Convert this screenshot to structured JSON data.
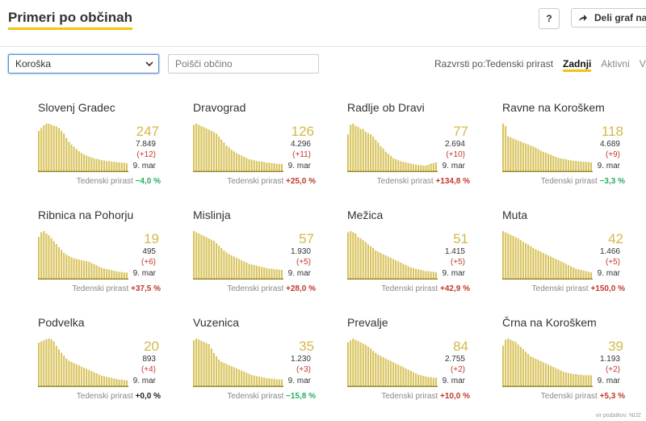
{
  "header": {
    "title": "Primeri po občinah",
    "help": "?",
    "share": "Deli graf na"
  },
  "filters": {
    "region": "Koroška",
    "search_placeholder": "Poišči občino",
    "sort_label": "Razvrsti po:",
    "sort_options": [
      "Tedenski prirast",
      "Zadnji",
      "Aktivni",
      "Vsi"
    ],
    "sort_active": 1
  },
  "cards": [
    {
      "name": "Slovenj Gradec",
      "value": "247",
      "total": "7.849",
      "delta": "(+12)",
      "date": "9. mar",
      "growth_label": "Tedenski prirast",
      "growth": "−4,0 %",
      "trend": "down",
      "bars": [
        75,
        80,
        85,
        88,
        88,
        86,
        84,
        83,
        80,
        75,
        70,
        62,
        55,
        50,
        46,
        42,
        38,
        35,
        32,
        30,
        28,
        27,
        25,
        24,
        23,
        22,
        21,
        20,
        20,
        19,
        19,
        18,
        18,
        17,
        17,
        16
      ]
    },
    {
      "name": "Dravograd",
      "value": "126",
      "total": "4.296",
      "delta": "(+11)",
      "date": "9. mar",
      "growth_label": "Tedenski prirast",
      "growth": "+25,0 %",
      "trend": "up",
      "bars": [
        80,
        82,
        80,
        78,
        76,
        74,
        72,
        70,
        68,
        65,
        60,
        55,
        50,
        45,
        42,
        38,
        35,
        32,
        30,
        28,
        26,
        24,
        22,
        21,
        20,
        19,
        18,
        18,
        17,
        16,
        16,
        15,
        15,
        14,
        14,
        14
      ]
    },
    {
      "name": "Radlje ob Dravi",
      "value": "77",
      "total": "2.694",
      "delta": "(+10)",
      "date": "9. mar",
      "growth_label": "Tedenski prirast",
      "growth": "+134,8 %",
      "trend": "up",
      "bars": [
        70,
        88,
        90,
        86,
        84,
        80,
        80,
        75,
        72,
        70,
        66,
        60,
        55,
        48,
        44,
        38,
        34,
        30,
        26,
        24,
        22,
        20,
        19,
        18,
        17,
        16,
        15,
        14,
        13,
        13,
        12,
        12,
        14,
        16,
        17,
        18
      ]
    },
    {
      "name": "Ravne na Koroškem",
      "value": "118",
      "total": "4.689",
      "delta": "(+9)",
      "date": "9. mar",
      "growth_label": "Tedenski prirast",
      "growth": "−3,3 %",
      "trend": "down",
      "bars": [
        95,
        90,
        70,
        68,
        66,
        64,
        62,
        60,
        58,
        56,
        54,
        52,
        50,
        48,
        45,
        42,
        40,
        38,
        36,
        34,
        32,
        30,
        28,
        27,
        26,
        25,
        24,
        23,
        22,
        22,
        21,
        21,
        20,
        20,
        20,
        19
      ]
    },
    {
      "name": "Ribnica na Pohorju",
      "value": "19",
      "total": "495",
      "delta": "(+6)",
      "date": "9. mar",
      "growth_label": "Tedenski prirast",
      "growth": "+37,5 %",
      "trend": "up",
      "bars": [
        72,
        80,
        82,
        78,
        75,
        70,
        65,
        60,
        55,
        50,
        45,
        42,
        40,
        38,
        36,
        35,
        34,
        33,
        32,
        31,
        30,
        28,
        26,
        24,
        22,
        20,
        19,
        18,
        17,
        16,
        15,
        14,
        13,
        13,
        12,
        12
      ]
    },
    {
      "name": "Mislinja",
      "value": "57",
      "total": "1.930",
      "delta": "(+5)",
      "date": "9. mar",
      "growth_label": "Tedenski prirast",
      "growth": "+28,0 %",
      "trend": "up",
      "bars": [
        80,
        78,
        76,
        74,
        72,
        70,
        68,
        66,
        64,
        60,
        56,
        52,
        48,
        45,
        42,
        40,
        38,
        36,
        34,
        32,
        30,
        28,
        26,
        25,
        24,
        23,
        22,
        21,
        20,
        19,
        18,
        18,
        17,
        17,
        16,
        16
      ]
    },
    {
      "name": "Mežica",
      "value": "51",
      "total": "1.415",
      "delta": "(+5)",
      "date": "9. mar",
      "growth_label": "Tedenski prirast",
      "growth": "+42,9 %",
      "trend": "up",
      "bars": [
        78,
        80,
        78,
        76,
        70,
        68,
        65,
        62,
        58,
        55,
        52,
        48,
        46,
        44,
        42,
        40,
        38,
        36,
        34,
        32,
        30,
        28,
        26,
        24,
        22,
        20,
        19,
        18,
        17,
        16,
        15,
        14,
        14,
        13,
        13,
        12
      ]
    },
    {
      "name": "Muta",
      "value": "42",
      "total": "1.466",
      "delta": "(+5)",
      "date": "9. mar",
      "growth_label": "Tedenski prirast",
      "growth": "+150,0 %",
      "trend": "up",
      "bars": [
        80,
        78,
        76,
        74,
        72,
        70,
        68,
        65,
        62,
        60,
        58,
        55,
        52,
        50,
        48,
        46,
        44,
        42,
        40,
        38,
        36,
        34,
        32,
        30,
        28,
        26,
        24,
        22,
        20,
        18,
        17,
        16,
        15,
        14,
        13,
        12
      ]
    },
    {
      "name": "Podvelka",
      "value": "20",
      "total": "893",
      "delta": "(+4)",
      "date": "9. mar",
      "growth_label": "Tedenski prirast",
      "growth": "+0,0 %",
      "trend": "flat",
      "bars": [
        78,
        80,
        82,
        84,
        85,
        84,
        80,
        72,
        66,
        60,
        55,
        50,
        46,
        44,
        42,
        40,
        38,
        36,
        34,
        32,
        30,
        28,
        26,
        24,
        22,
        20,
        19,
        18,
        17,
        16,
        15,
        14,
        13,
        13,
        12,
        12
      ]
    },
    {
      "name": "Vuzenica",
      "value": "35",
      "total": "1.230",
      "delta": "(+3)",
      "date": "9. mar",
      "growth_label": "Tedenski prirast",
      "growth": "−15,8 %",
      "trend": "down",
      "bars": [
        85,
        88,
        86,
        84,
        82,
        80,
        78,
        70,
        62,
        56,
        50,
        46,
        44,
        42,
        40,
        38,
        36,
        34,
        32,
        30,
        28,
        26,
        24,
        22,
        21,
        20,
        19,
        18,
        17,
        16,
        16,
        15,
        15,
        14,
        14,
        14
      ]
    },
    {
      "name": "Prevalje",
      "value": "84",
      "total": "2.755",
      "delta": "(+2)",
      "date": "9. mar",
      "growth_label": "Tedenski prirast",
      "growth": "+10,0 %",
      "trend": "up",
      "bars": [
        72,
        75,
        78,
        76,
        74,
        72,
        70,
        68,
        65,
        62,
        58,
        55,
        52,
        50,
        48,
        46,
        44,
        42,
        40,
        38,
        36,
        34,
        32,
        30,
        28,
        26,
        24,
        22,
        20,
        19,
        18,
        17,
        16,
        16,
        15,
        15
      ]
    },
    {
      "name": "Črna na Koroškem",
      "value": "39",
      "total": "1.193",
      "delta": "(+2)",
      "date": "9. mar",
      "growth_label": "Tedenski prirast",
      "growth": "+5,3 %",
      "trend": "up",
      "bars": [
        70,
        80,
        82,
        80,
        78,
        76,
        72,
        68,
        64,
        60,
        56,
        52,
        50,
        48,
        46,
        44,
        42,
        40,
        38,
        36,
        34,
        32,
        30,
        28,
        26,
        25,
        24,
        23,
        22,
        22,
        21,
        21,
        20,
        20,
        20,
        20
      ]
    }
  ],
  "footer": "vir podatkov: NIJZ"
}
